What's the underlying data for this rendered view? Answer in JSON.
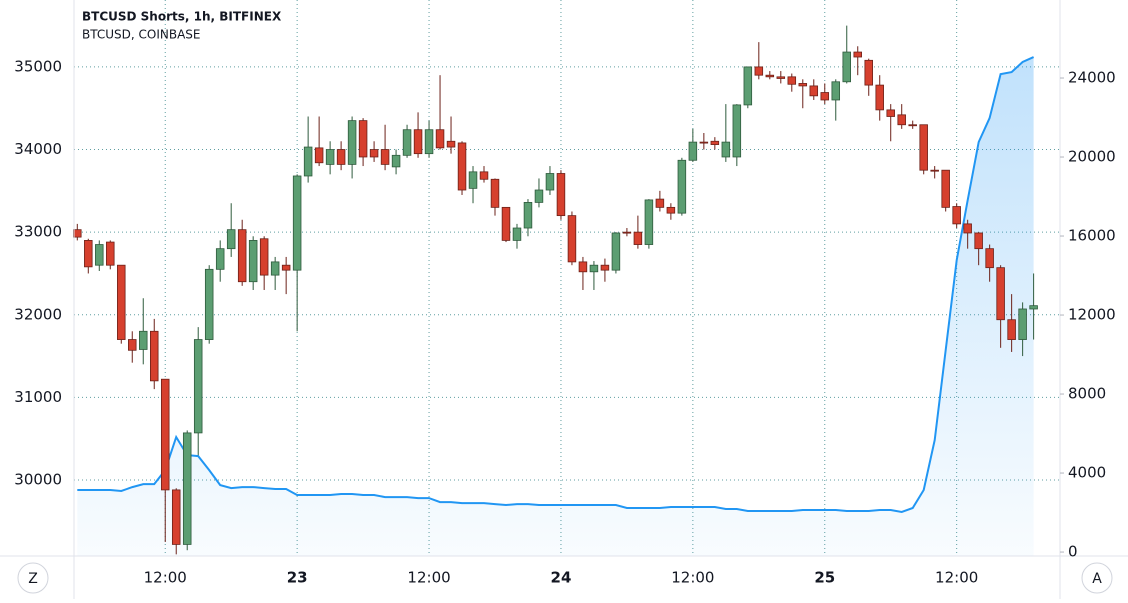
{
  "chart_data": {
    "type": "candlestick",
    "x": [
      4,
      5,
      6,
      7,
      8,
      9,
      10,
      11,
      12,
      13,
      14,
      15,
      16,
      17,
      18,
      19,
      20,
      21,
      22,
      23,
      24,
      25,
      26,
      27,
      28,
      29,
      30,
      31,
      32,
      33,
      34,
      35,
      36,
      37,
      38,
      39,
      40,
      41,
      42,
      43,
      44,
      45,
      46,
      47,
      48,
      49,
      50,
      51,
      52,
      53,
      54,
      55,
      56,
      57,
      58,
      59,
      60,
      61,
      62,
      63,
      64,
      65,
      66,
      67,
      68,
      69,
      70,
      71,
      72,
      73,
      74,
      75,
      76,
      77,
      78,
      79,
      80,
      81,
      82,
      83,
      84,
      85,
      86,
      87,
      88,
      89,
      90,
      91
    ],
    "xlim": [
      3.7,
      93.4
    ],
    "xticks": [
      {
        "value": 12,
        "label": "12:00"
      },
      {
        "value": 24,
        "label": "23"
      },
      {
        "value": 36,
        "label": "12:00"
      },
      {
        "value": 48,
        "label": "24"
      },
      {
        "value": 60,
        "label": "12:00"
      },
      {
        "value": 72,
        "label": "25"
      },
      {
        "value": 84,
        "label": "12:00"
      }
    ],
    "ylim": [
      29080,
      35810
    ],
    "yticks": [
      30000,
      31000,
      32000,
      33000,
      34000,
      35000
    ],
    "y2lim": [
      -200,
      27950
    ],
    "y2ticks": [
      0,
      4000,
      8000,
      12000,
      16000,
      20000,
      24000
    ],
    "grid": true,
    "series": [
      {
        "name": "BTCUSD Shorts, 1h, BITFINEX",
        "type": "line",
        "axis": "y2",
        "color": "#2196f3",
        "values": [
          3140,
          3140,
          3140,
          3140,
          3090,
          3290,
          3440,
          3440,
          4150,
          5820,
          4910,
          4860,
          4150,
          3390,
          3240,
          3290,
          3290,
          3240,
          3190,
          3190,
          2890,
          2890,
          2890,
          2890,
          2940,
          2940,
          2890,
          2890,
          2780,
          2780,
          2780,
          2730,
          2730,
          2530,
          2530,
          2480,
          2480,
          2480,
          2430,
          2380,
          2430,
          2430,
          2380,
          2380,
          2380,
          2380,
          2380,
          2380,
          2380,
          2380,
          2230,
          2230,
          2230,
          2230,
          2280,
          2280,
          2280,
          2280,
          2280,
          2180,
          2180,
          2080,
          2080,
          2080,
          2080,
          2080,
          2130,
          2130,
          2130,
          2130,
          2080,
          2080,
          2080,
          2130,
          2130,
          2030,
          2230,
          3140,
          5670,
          10230,
          14780,
          17820,
          20760,
          21970,
          24200,
          24300,
          24810,
          25060
        ]
      },
      {
        "name": "BTCUSD, COINBASE",
        "type": "candlestick",
        "up_color": "#5c9e72",
        "down_color": "#d6402e",
        "open": [
          33030,
          32900,
          32600,
          32880,
          32600,
          31700,
          31580,
          31800,
          31220,
          29880,
          29220,
          30570,
          31700,
          32550,
          32800,
          33030,
          32400,
          32920,
          32480,
          32600,
          32540,
          33680,
          34020,
          33820,
          34000,
          33820,
          34350,
          34000,
          34000,
          33790,
          33930,
          34240,
          33950,
          34240,
          34100,
          34080,
          33530,
          33730,
          33640,
          33300,
          32900,
          33050,
          33360,
          33510,
          33710,
          33200,
          32640,
          32520,
          32600,
          32540,
          33000,
          33000,
          32850,
          33400,
          33300,
          33230,
          33870,
          34090,
          34100,
          33910,
          33910,
          34540,
          35000,
          34900,
          34880,
          34880,
          34800,
          34770,
          34690,
          34600,
          34820,
          35180,
          35080,
          34780,
          34480,
          34420,
          34300,
          34300,
          33750,
          33750,
          33310,
          33100,
          32990,
          32800,
          32570,
          31940,
          31700,
          32070
        ],
        "high": [
          33100,
          32920,
          32900,
          32900,
          32600,
          31800,
          32200,
          31950,
          31220,
          29900,
          30600,
          31850,
          32600,
          32900,
          33350,
          33150,
          32950,
          32950,
          32700,
          32700,
          33700,
          34400,
          34400,
          34100,
          34100,
          34400,
          34380,
          34100,
          34300,
          34000,
          34300,
          34450,
          34350,
          34900,
          34400,
          34100,
          33800,
          33800,
          33650,
          33300,
          33100,
          33400,
          33650,
          33800,
          33750,
          33250,
          32700,
          32650,
          32680,
          33000,
          33050,
          33200,
          33400,
          33500,
          33350,
          33900,
          34250,
          34200,
          34150,
          34550,
          34550,
          35000,
          35300,
          34950,
          34950,
          34920,
          34850,
          34850,
          34800,
          34850,
          35500,
          35250,
          35100,
          34900,
          34550,
          34550,
          34350,
          34300,
          33800,
          33750,
          33350,
          33150,
          33000,
          32850,
          32600,
          32250,
          32150,
          32500
        ],
        "low": [
          32900,
          32500,
          32530,
          32550,
          31650,
          31420,
          31400,
          31100,
          29250,
          29100,
          29150,
          30300,
          31650,
          32400,
          32700,
          32350,
          32300,
          32300,
          32300,
          32250,
          31800,
          33600,
          33800,
          33700,
          33750,
          33650,
          33800,
          33850,
          33750,
          33700,
          33900,
          33900,
          33900,
          34000,
          33950,
          33450,
          33350,
          33600,
          33200,
          32880,
          32800,
          32950,
          33300,
          33450,
          33150,
          32600,
          32300,
          32300,
          32400,
          32500,
          32950,
          32800,
          32800,
          33250,
          33150,
          33200,
          33850,
          34000,
          34000,
          33850,
          33800,
          34500,
          34850,
          34850,
          34800,
          34700,
          34500,
          34600,
          34550,
          34350,
          34800,
          34900,
          34650,
          34350,
          34100,
          34250,
          34250,
          33700,
          33650,
          33250,
          33050,
          32800,
          32600,
          32400,
          31600,
          31550,
          31500,
          31700
        ],
        "close": [
          32940,
          32580,
          32850,
          32600,
          31700,
          31570,
          31800,
          31200,
          29880,
          29220,
          30570,
          31700,
          32550,
          32800,
          33030,
          32400,
          32900,
          32480,
          32640,
          32540,
          33680,
          34030,
          33840,
          34000,
          33820,
          34350,
          33910,
          33910,
          33820,
          33930,
          34240,
          33950,
          34240,
          34020,
          34030,
          33510,
          33730,
          33640,
          33300,
          32900,
          33050,
          33360,
          33510,
          33710,
          33200,
          32640,
          32520,
          32600,
          32540,
          32990,
          32990,
          32850,
          33390,
          33300,
          33230,
          33870,
          34090,
          34080,
          34060,
          34090,
          34540,
          35000,
          34900,
          34880,
          34860,
          34790,
          34770,
          34650,
          34600,
          34820,
          35180,
          35120,
          34780,
          34480,
          34400,
          34300,
          34290,
          33750,
          33740,
          33300,
          33100,
          32990,
          32800,
          32570,
          31940,
          31700,
          32070,
          32110
        ]
      }
    ]
  },
  "ui": {
    "left_button": "Z",
    "right_button": "A"
  }
}
